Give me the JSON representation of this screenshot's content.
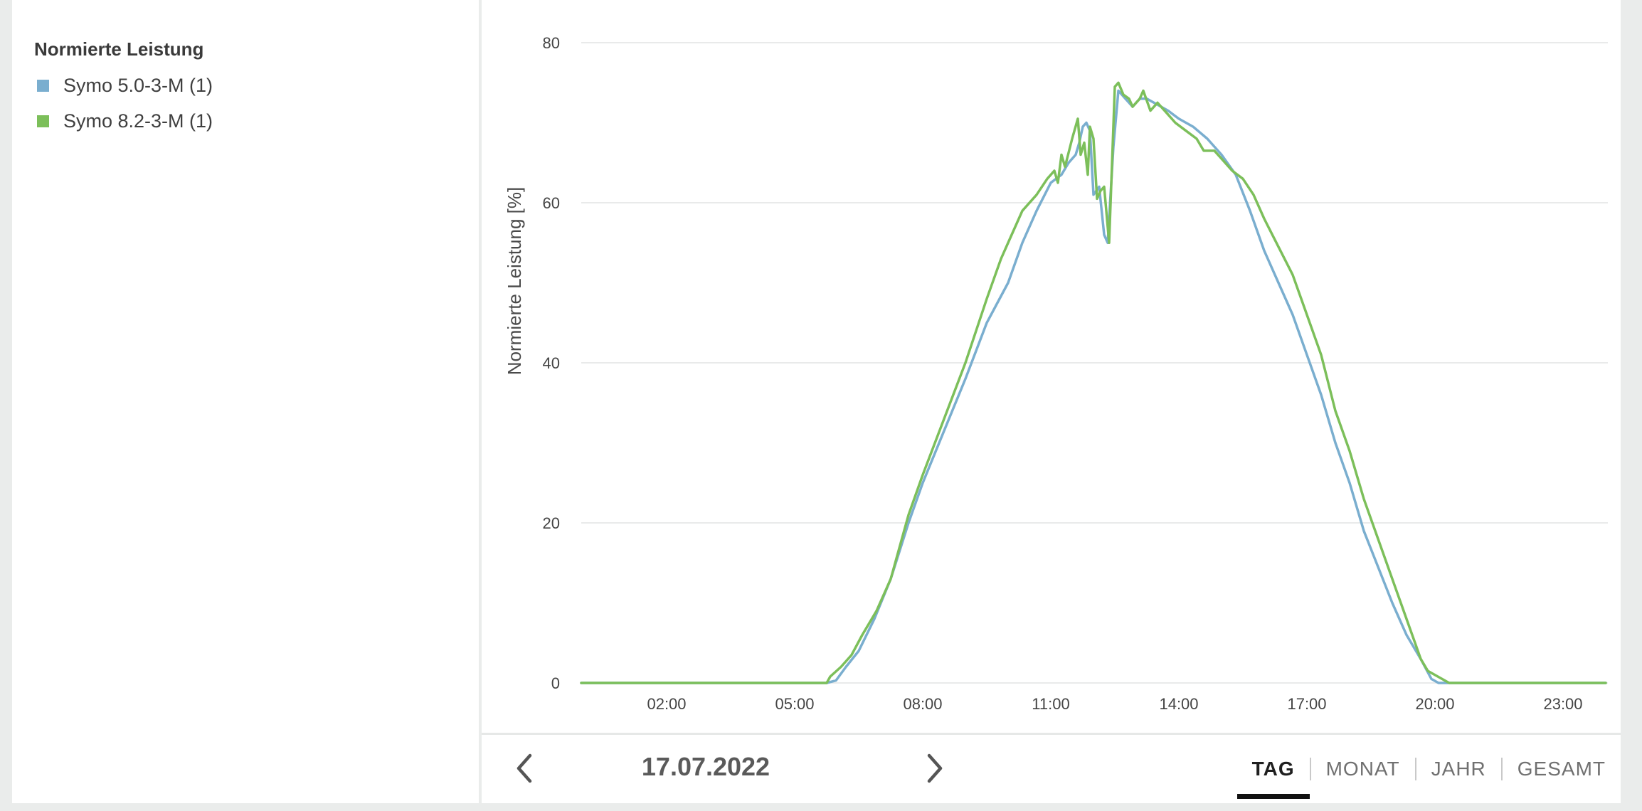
{
  "legend": {
    "title": "Normierte Leistung",
    "items": [
      {
        "label": "Symo 5.0-3-M (1)",
        "color": "#7aaecf"
      },
      {
        "label": "Symo 8.2-3-M (1)",
        "color": "#7cbf5a"
      }
    ]
  },
  "navigation": {
    "date": "17.07.2022",
    "prev_icon": "chevron-left-icon",
    "next_icon": "chevron-right-icon",
    "tabs": [
      {
        "label": "TAG",
        "active": true
      },
      {
        "label": "MONAT",
        "active": false
      },
      {
        "label": "JAHR",
        "active": false
      },
      {
        "label": "GESAMT",
        "active": false
      }
    ]
  },
  "chart_data": {
    "type": "line",
    "ylabel": "Normierte Leistung [%]",
    "xlabel": "",
    "ylim": [
      0,
      80
    ],
    "xlim": [
      "00:00",
      "24:00"
    ],
    "yticks": [
      0,
      20,
      40,
      60,
      80
    ],
    "xticks": [
      "02:00",
      "05:00",
      "08:00",
      "11:00",
      "14:00",
      "17:00",
      "20:00",
      "23:00"
    ],
    "grid": true,
    "series": [
      {
        "name": "Symo 5.0-3-M (1)",
        "color": "#7aaecf",
        "points": [
          [
            "00:00",
            0
          ],
          [
            "05:45",
            0
          ],
          [
            "05:58",
            0.3
          ],
          [
            "06:12",
            2
          ],
          [
            "06:30",
            4
          ],
          [
            "06:52",
            8
          ],
          [
            "07:15",
            13
          ],
          [
            "07:40",
            20
          ],
          [
            "08:00",
            25
          ],
          [
            "08:30",
            31.5
          ],
          [
            "09:00",
            38
          ],
          [
            "09:30",
            45
          ],
          [
            "10:00",
            50
          ],
          [
            "10:20",
            55
          ],
          [
            "10:40",
            59
          ],
          [
            "11:00",
            62.5
          ],
          [
            "11:15",
            63.5
          ],
          [
            "11:25",
            65
          ],
          [
            "11:35",
            66
          ],
          [
            "11:40",
            67.5
          ],
          [
            "11:45",
            69.5
          ],
          [
            "11:50",
            70
          ],
          [
            "11:55",
            69
          ],
          [
            "12:00",
            61
          ],
          [
            "12:08",
            62
          ],
          [
            "12:15",
            56
          ],
          [
            "12:20",
            55
          ],
          [
            "12:28",
            67
          ],
          [
            "12:35",
            74
          ],
          [
            "12:45",
            73
          ],
          [
            "12:55",
            72
          ],
          [
            "13:05",
            73
          ],
          [
            "13:15",
            73
          ],
          [
            "13:25",
            72.5
          ],
          [
            "13:35",
            72
          ],
          [
            "13:45",
            71.5
          ],
          [
            "14:00",
            70.5
          ],
          [
            "14:20",
            69.5
          ],
          [
            "14:40",
            68
          ],
          [
            "15:00",
            66
          ],
          [
            "15:20",
            63.5
          ],
          [
            "15:40",
            59
          ],
          [
            "16:00",
            54
          ],
          [
            "16:20",
            50
          ],
          [
            "16:40",
            46
          ],
          [
            "17:00",
            41
          ],
          [
            "17:20",
            36
          ],
          [
            "17:40",
            30
          ],
          [
            "18:00",
            25
          ],
          [
            "18:20",
            19
          ],
          [
            "18:40",
            14.5
          ],
          [
            "19:00",
            10
          ],
          [
            "19:20",
            6
          ],
          [
            "19:40",
            3
          ],
          [
            "19:55",
            0.5
          ],
          [
            "20:05",
            0
          ],
          [
            "24:00",
            0
          ]
        ]
      },
      {
        "name": "Symo 8.2-3-M (1)",
        "color": "#7cbf5a",
        "points": [
          [
            "00:00",
            0
          ],
          [
            "05:45",
            0
          ],
          [
            "05:50",
            0.8
          ],
          [
            "06:05",
            2
          ],
          [
            "06:20",
            3.5
          ],
          [
            "06:35",
            6
          ],
          [
            "06:55",
            9
          ],
          [
            "07:15",
            13
          ],
          [
            "07:40",
            21
          ],
          [
            "08:00",
            26
          ],
          [
            "08:30",
            33
          ],
          [
            "09:00",
            40
          ],
          [
            "09:30",
            48
          ],
          [
            "09:50",
            53
          ],
          [
            "10:05",
            56
          ],
          [
            "10:20",
            59
          ],
          [
            "10:40",
            61
          ],
          [
            "10:55",
            63
          ],
          [
            "11:05",
            64
          ],
          [
            "11:10",
            62.5
          ],
          [
            "11:15",
            66
          ],
          [
            "11:20",
            64.5
          ],
          [
            "11:30",
            68
          ],
          [
            "11:38",
            70.5
          ],
          [
            "11:42",
            66
          ],
          [
            "11:47",
            67.5
          ],
          [
            "11:52",
            63.5
          ],
          [
            "11:55",
            69.5
          ],
          [
            "12:00",
            68
          ],
          [
            "12:05",
            60.5
          ],
          [
            "12:10",
            61.5
          ],
          [
            "12:15",
            62
          ],
          [
            "12:22",
            55
          ],
          [
            "12:30",
            74.5
          ],
          [
            "12:35",
            75
          ],
          [
            "12:42",
            73.5
          ],
          [
            "12:50",
            73
          ],
          [
            "12:55",
            72
          ],
          [
            "13:05",
            73
          ],
          [
            "13:10",
            74
          ],
          [
            "13:20",
            71.5
          ],
          [
            "13:30",
            72.5
          ],
          [
            "13:40",
            71.5
          ],
          [
            "13:55",
            70
          ],
          [
            "14:10",
            69
          ],
          [
            "14:25",
            68
          ],
          [
            "14:35",
            66.5
          ],
          [
            "14:50",
            66.5
          ],
          [
            "15:00",
            65.5
          ],
          [
            "15:15",
            64
          ],
          [
            "15:30",
            63
          ],
          [
            "15:45",
            61
          ],
          [
            "16:00",
            58
          ],
          [
            "16:20",
            54.5
          ],
          [
            "16:40",
            51
          ],
          [
            "17:00",
            46
          ],
          [
            "17:20",
            41
          ],
          [
            "17:40",
            34
          ],
          [
            "18:00",
            29
          ],
          [
            "18:20",
            23
          ],
          [
            "18:40",
            18
          ],
          [
            "19:00",
            13
          ],
          [
            "19:20",
            8
          ],
          [
            "19:30",
            5.5
          ],
          [
            "19:40",
            3
          ],
          [
            "19:50",
            1.5
          ],
          [
            "20:10",
            0.5
          ],
          [
            "20:20",
            0
          ],
          [
            "24:00",
            0
          ]
        ]
      }
    ]
  }
}
